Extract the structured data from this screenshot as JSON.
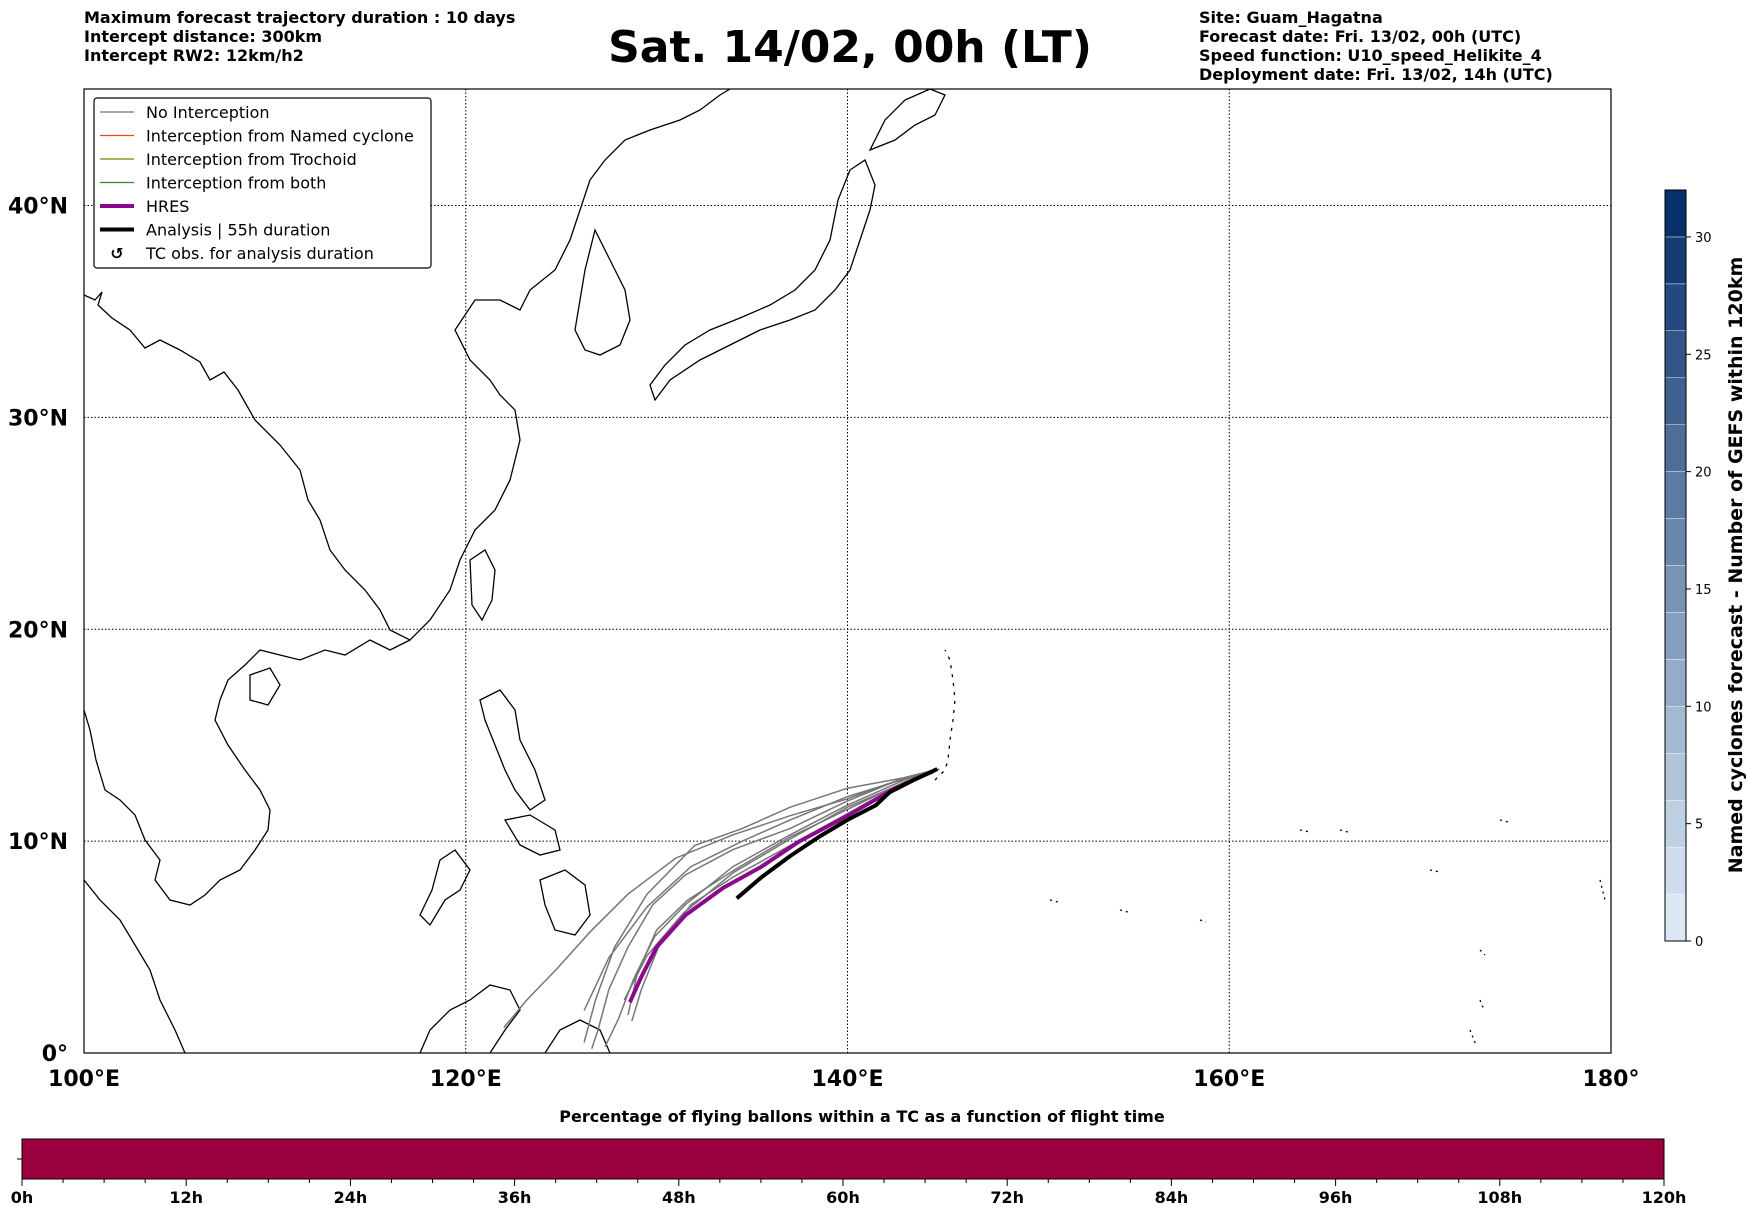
{
  "header_left": [
    "Maximum forecast trajectory duration : 10 days",
    "Intercept distance: 300km",
    "Intercept RW2: 12km/h2"
  ],
  "title": "Sat. 14/02, 00h (LT)",
  "header_right": [
    "Site: Guam_Hagatna",
    "Forecast date: Fri. 13/02, 00h (UTC)",
    "Speed function: U10_speed_Helikite_4",
    "Deployment date: Fri. 13/02, 14h (UTC)"
  ],
  "legend": [
    {
      "label": "No Interception",
      "color": "#777777",
      "style": "thin"
    },
    {
      "label": "Interception from Named cyclone",
      "color": "#e8481c",
      "style": "thin"
    },
    {
      "label": "Interception from Trochoid",
      "color": "#808000",
      "style": "thin"
    },
    {
      "label": "Interception from both",
      "color": "#2e8b2e",
      "style": "thin"
    },
    {
      "label": "HRES",
      "color": "#8b0a8b",
      "style": "thick"
    },
    {
      "label": "Analysis | 55h duration",
      "color": "#000000",
      "style": "thick"
    },
    {
      "label": "TC obs. for analysis duration",
      "color": "#000000",
      "style": "symbol"
    }
  ],
  "map": {
    "lon_range": [
      100,
      180
    ],
    "lat_range": [
      0,
      45.5
    ],
    "lon_ticks": [
      {
        "v": 100,
        "label": "100°E"
      },
      {
        "v": 120,
        "label": "120°E"
      },
      {
        "v": 140,
        "label": "140°E"
      },
      {
        "v": 160,
        "label": "160°E"
      },
      {
        "v": 180,
        "label": "180°"
      }
    ],
    "lat_ticks": [
      {
        "v": 0,
        "label": "0°"
      },
      {
        "v": 10,
        "label": "10°N"
      },
      {
        "v": 20,
        "label": "20°N"
      },
      {
        "v": 30,
        "label": "30°N"
      },
      {
        "v": 40,
        "label": "40°N"
      }
    ],
    "gridlines": true
  },
  "trajectories": {
    "no_interception": [
      [
        [
          144.8,
          13.4
        ],
        [
          143,
          13.0
        ],
        [
          140,
          11.9
        ],
        [
          137,
          10.6
        ],
        [
          134,
          9.6
        ],
        [
          131.5,
          8.4
        ],
        [
          129.8,
          7.0
        ],
        [
          128.5,
          5.0
        ],
        [
          127.5,
          3.0
        ],
        [
          126.9,
          1.0
        ],
        [
          126.6,
          0.2
        ]
      ],
      [
        [
          144.8,
          13.4
        ],
        [
          143,
          13.0
        ],
        [
          140,
          12.0
        ],
        [
          137,
          11.2
        ],
        [
          134,
          10.3
        ],
        [
          131,
          9.2
        ],
        [
          128.5,
          7.5
        ],
        [
          126.5,
          5.7
        ],
        [
          124.8,
          4.0
        ],
        [
          123.2,
          2.5
        ],
        [
          122.0,
          1.2
        ]
      ],
      [
        [
          144.8,
          13.4
        ],
        [
          143,
          13.0
        ],
        [
          140,
          12.5
        ],
        [
          137,
          11.6
        ],
        [
          134.5,
          10.6
        ],
        [
          132,
          9.8
        ],
        [
          129.5,
          7.5
        ],
        [
          127.8,
          5.0
        ],
        [
          126.8,
          2.5
        ],
        [
          126.2,
          0.5
        ]
      ],
      [
        [
          144.8,
          13.4
        ],
        [
          143,
          12.9
        ],
        [
          140,
          11.7
        ],
        [
          137,
          10.3
        ],
        [
          134,
          8.8
        ],
        [
          131.5,
          7.0
        ],
        [
          129.9,
          5.5
        ],
        [
          128.8,
          3.5
        ],
        [
          128.0,
          1.6
        ],
        [
          127.3,
          0.3
        ]
      ],
      [
        [
          144.8,
          13.4
        ],
        [
          143,
          12.8
        ],
        [
          140,
          11.5
        ],
        [
          137,
          10.2
        ],
        [
          134,
          8.6
        ],
        [
          131.6,
          7.2
        ],
        [
          130.0,
          5.8
        ],
        [
          129.0,
          3.8
        ],
        [
          128.5,
          1.8
        ]
      ],
      [
        [
          144.8,
          13.4
        ],
        [
          143,
          12.8
        ],
        [
          140,
          11.3
        ],
        [
          137,
          9.8
        ],
        [
          134,
          8.3
        ],
        [
          131.8,
          7.0
        ],
        [
          130.1,
          5.0
        ],
        [
          129.2,
          3.0
        ],
        [
          128.7,
          1.5
        ]
      ],
      [
        [
          144.8,
          13.4
        ],
        [
          142.8,
          12.7
        ],
        [
          140,
          11.6
        ],
        [
          137,
          10.1
        ],
        [
          134,
          8.5
        ],
        [
          131.4,
          6.6
        ],
        [
          129.5,
          4.6
        ],
        [
          128.3,
          2.5
        ]
      ],
      [
        [
          144.8,
          13.4
        ],
        [
          142.5,
          12.8
        ],
        [
          140,
          12.1
        ],
        [
          137,
          11.0
        ],
        [
          134.5,
          10.0
        ],
        [
          131.8,
          8.8
        ],
        [
          129.5,
          6.9
        ],
        [
          127.5,
          4.5
        ],
        [
          126.2,
          2.0
        ]
      ]
    ],
    "hres": [
      [
        144.5,
        13.3
      ],
      [
        142.5,
        12.5
      ],
      [
        140,
        11.2
      ],
      [
        137.5,
        10.0
      ],
      [
        135.5,
        8.8
      ],
      [
        133.5,
        7.8
      ],
      [
        131.5,
        6.5
      ],
      [
        130,
        5.0
      ],
      [
        129.2,
        3.6
      ],
      [
        128.6,
        2.4
      ]
    ],
    "analysis": [
      [
        144.7,
        13.4
      ],
      [
        143.5,
        12.9
      ],
      [
        142.2,
        12.3
      ],
      [
        141.5,
        11.7
      ],
      [
        140,
        11.0
      ],
      [
        138.5,
        10.2
      ],
      [
        137.0,
        9.3
      ],
      [
        135.5,
        8.3
      ],
      [
        134.2,
        7.3
      ]
    ]
  },
  "colorbar": {
    "label": "Named cyclones forecast - Number of GEFS within 120km",
    "min": 0,
    "max": 32,
    "ticks": [
      0,
      5,
      10,
      15,
      20,
      25,
      30
    ],
    "color_low": "#dbe9f6",
    "color_high": "#08306b"
  },
  "pct_bar": {
    "title": "Percentage of flying ballons within a TC as a function of flight time",
    "color": "#99003d",
    "ticks": [
      "0h",
      "12h",
      "24h",
      "36h",
      "48h",
      "60h",
      "72h",
      "84h",
      "96h",
      "108h",
      "120h"
    ],
    "percent": 0
  }
}
